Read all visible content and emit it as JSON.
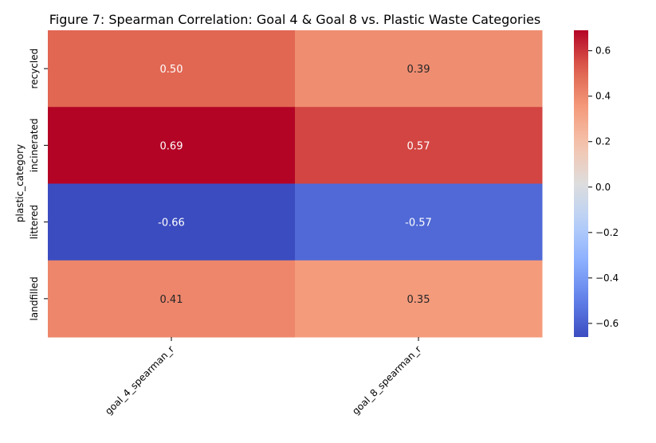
{
  "chart_data": {
    "type": "heatmap",
    "title": "Figure 7: Spearman Correlation: Goal 4 & Goal 8 vs. Plastic Waste Categories",
    "xlabel": "",
    "ylabel": "plastic_category",
    "x_categories": [
      "goal_4_spearman_r",
      "goal_8_spearman_r"
    ],
    "y_categories": [
      "recycled",
      "incinerated",
      "littered",
      "landfilled"
    ],
    "values": [
      [
        0.5,
        0.39
      ],
      [
        0.69,
        0.57
      ],
      [
        -0.66,
        -0.57
      ],
      [
        0.41,
        0.35
      ]
    ],
    "annotations": [
      [
        "0.50",
        "0.39"
      ],
      [
        "0.69",
        "0.57"
      ],
      [
        "-0.66",
        "-0.57"
      ],
      [
        "0.41",
        "0.35"
      ]
    ],
    "colormap": "coolwarm",
    "vmin": -0.66,
    "vmax": 0.69,
    "colorbar_ticks": [
      -0.6,
      -0.4,
      -0.2,
      0.0,
      0.2,
      0.4,
      0.6
    ],
    "colorbar_tick_labels": [
      "−0.6",
      "−0.4",
      "−0.2",
      "0.0",
      "0.2",
      "0.4",
      "0.6"
    ]
  }
}
